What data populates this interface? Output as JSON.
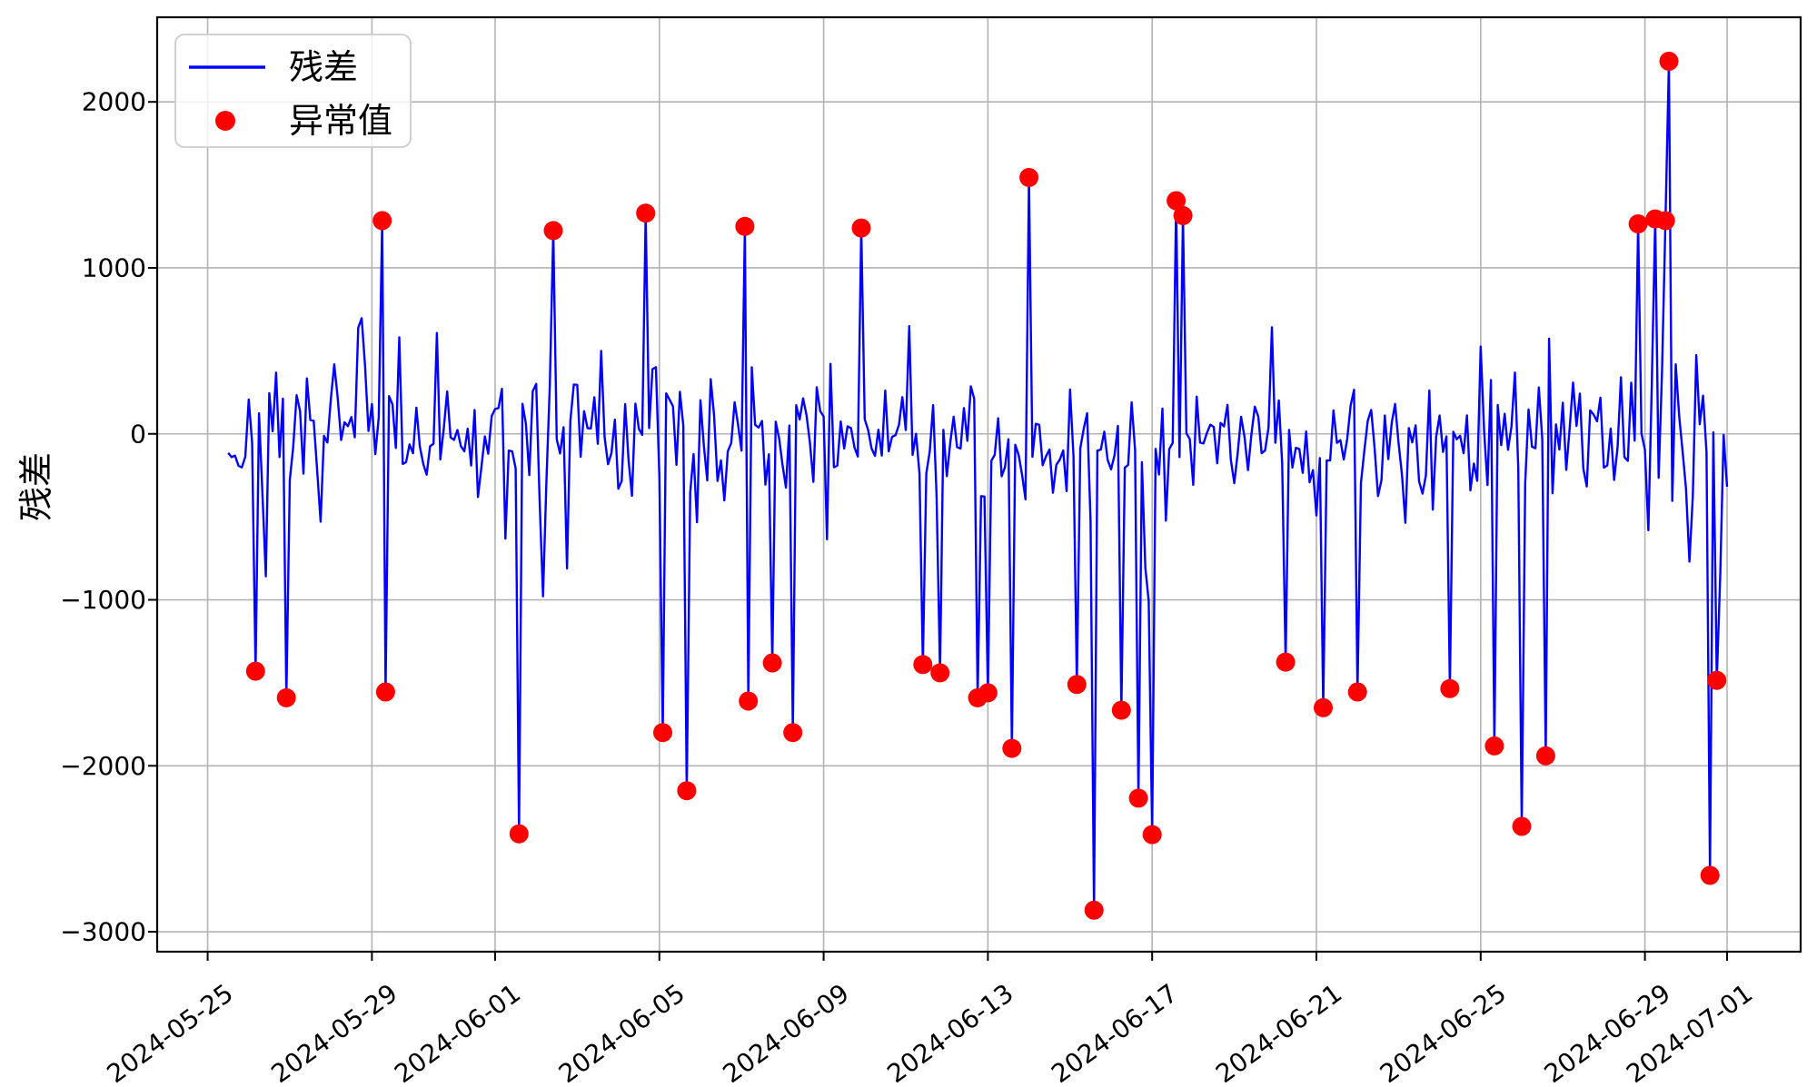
{
  "chart_data": {
    "type": "line+scatter",
    "ylabel": "残差",
    "legend": [
      "残差",
      "异常值"
    ],
    "legend_position": "upper-left",
    "grid": true,
    "colors": {
      "line": "#0000ff",
      "outlier": "#ff0000",
      "grid": "#b3b3b3",
      "spine": "#000000",
      "legend_border": "#cccccc"
    },
    "ylim": [
      -3120,
      2510
    ],
    "xlim": [
      "2024-05-23 18:30",
      "2024-07-02 19:00"
    ],
    "yticks": [
      2000,
      1000,
      0,
      -1000,
      -2000,
      -3000
    ],
    "xticks": [
      "2024-05-25",
      "2024-05-29",
      "2024-06-01",
      "2024-06-05",
      "2024-06-09",
      "2024-06-13",
      "2024-06-17",
      "2024-06-21",
      "2024-06-25",
      "2024-06-29",
      "2024-07-01"
    ],
    "xtick_rotation_deg": 36,
    "residual_series": {
      "description": "high-frequency residual noise line, dense band roughly -450..+300 with frequent spikes to about ±1100",
      "start": "2024-05-25 12:00",
      "end": "2024-07-01 00:00",
      "step_hours": 2,
      "baseline": -40,
      "core_spread": 300,
      "spike_down_chance": 0.055,
      "spike_up_chance": 0.05,
      "spike_min": 280,
      "spike_extra_down": 560,
      "spike_extra_up": 520,
      "clamp": [
        -1150,
        1100
      ],
      "seed": 7
    },
    "outliers": [
      {
        "date": "2024-05-26",
        "time": "03:00",
        "value": -1430
      },
      {
        "date": "2024-05-26",
        "time": "21:00",
        "value": -1590
      },
      {
        "date": "2024-05-29",
        "time": "06:00",
        "value": 1285
      },
      {
        "date": "2024-05-29",
        "time": "08:00",
        "value": -1555
      },
      {
        "date": "2024-06-01",
        "time": "14:00",
        "value": -2410
      },
      {
        "date": "2024-06-02",
        "time": "09:00",
        "value": 1225
      },
      {
        "date": "2024-06-04",
        "time": "15:00",
        "value": 1330
      },
      {
        "date": "2024-06-05",
        "time": "02:00",
        "value": -1800
      },
      {
        "date": "2024-06-05",
        "time": "15:00",
        "value": -2150
      },
      {
        "date": "2024-06-07",
        "time": "02:00",
        "value": 1250
      },
      {
        "date": "2024-06-07",
        "time": "03:00",
        "value": -1610
      },
      {
        "date": "2024-06-07",
        "time": "18:00",
        "value": -1380
      },
      {
        "date": "2024-06-08",
        "time": "05:00",
        "value": -1800
      },
      {
        "date": "2024-06-09",
        "time": "21:00",
        "value": 1240
      },
      {
        "date": "2024-06-11",
        "time": "09:00",
        "value": -1390
      },
      {
        "date": "2024-06-11",
        "time": "20:00",
        "value": -1440
      },
      {
        "date": "2024-06-12",
        "time": "17:00",
        "value": -1590
      },
      {
        "date": "2024-06-12",
        "time": "23:00",
        "value": -1560
      },
      {
        "date": "2024-06-13",
        "time": "13:00",
        "value": -1895
      },
      {
        "date": "2024-06-14",
        "time": "00:00",
        "value": 1545
      },
      {
        "date": "2024-06-15",
        "time": "03:00",
        "value": -1510
      },
      {
        "date": "2024-06-15",
        "time": "14:00",
        "value": -2870
      },
      {
        "date": "2024-06-16",
        "time": "05:00",
        "value": -1665
      },
      {
        "date": "2024-06-16",
        "time": "15:00",
        "value": -2195
      },
      {
        "date": "2024-06-17",
        "time": "00:00",
        "value": -2415
      },
      {
        "date": "2024-06-17",
        "time": "14:00",
        "value": 1405
      },
      {
        "date": "2024-06-17",
        "time": "18:00",
        "value": 1315
      },
      {
        "date": "2024-06-20",
        "time": "05:00",
        "value": -1375
      },
      {
        "date": "2024-06-21",
        "time": "03:00",
        "value": -1650
      },
      {
        "date": "2024-06-22",
        "time": "00:00",
        "value": -1555
      },
      {
        "date": "2024-06-24",
        "time": "05:00",
        "value": -1535
      },
      {
        "date": "2024-06-25",
        "time": "08:00",
        "value": -1880
      },
      {
        "date": "2024-06-26",
        "time": "00:00",
        "value": -2365
      },
      {
        "date": "2024-06-26",
        "time": "14:00",
        "value": -1940
      },
      {
        "date": "2024-06-28",
        "time": "19:00",
        "value": 1265
      },
      {
        "date": "2024-06-29",
        "time": "05:00",
        "value": 1295
      },
      {
        "date": "2024-06-29",
        "time": "12:00",
        "value": 1285
      },
      {
        "date": "2024-06-29",
        "time": "14:00",
        "value": 2245
      },
      {
        "date": "2024-06-30",
        "time": "14:00",
        "value": -2660
      },
      {
        "date": "2024-06-30",
        "time": "17:00",
        "value": -1485
      }
    ]
  }
}
